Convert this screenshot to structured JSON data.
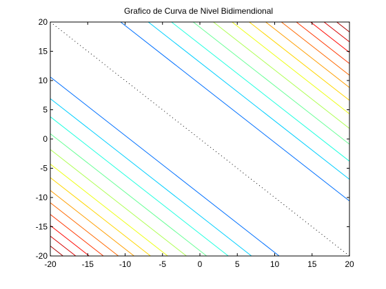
{
  "chart_data": {
    "type": "contour",
    "title": "Grafico de Curva de Nivel Bidimendional",
    "xlabel": "",
    "ylabel": "",
    "xlim": [
      -20,
      20
    ],
    "ylim": [
      -20,
      20
    ],
    "xticks": [
      -20,
      -15,
      -10,
      -5,
      0,
      5,
      10,
      15,
      20
    ],
    "yticks": [
      -20,
      -15,
      -10,
      -5,
      0,
      5,
      10,
      15,
      20
    ],
    "xtick_labels": [
      "-20",
      "-15",
      "-10",
      "-5",
      "0",
      "5",
      "10",
      "15",
      "20"
    ],
    "ytick_labels": [
      "-20",
      "-15",
      "-10",
      "-5",
      "0",
      "5",
      "10",
      "15",
      "20"
    ],
    "grid": false,
    "legend": "none",
    "function_description": "level curves of |x + y|",
    "levels": [
      0,
      9.4,
      13.1,
      16.2,
      19.1,
      21.8,
      24.3,
      26.6,
      28.8,
      30.9,
      32.9,
      34.8,
      36.6,
      38.3,
      39.9
    ],
    "zero_level_style": "dotted-black",
    "colormap": "jet",
    "color_range": [
      0,
      40
    ]
  }
}
